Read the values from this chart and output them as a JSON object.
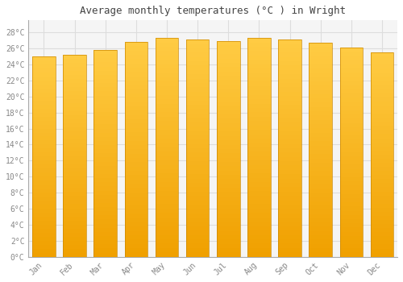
{
  "title": "Average monthly temperatures (°C ) in Wright",
  "months": [
    "Jan",
    "Feb",
    "Mar",
    "Apr",
    "May",
    "Jun",
    "Jul",
    "Aug",
    "Sep",
    "Oct",
    "Nov",
    "Dec"
  ],
  "values": [
    25.0,
    25.2,
    25.8,
    26.8,
    27.3,
    27.1,
    26.9,
    27.3,
    27.1,
    26.7,
    26.1,
    25.5
  ],
  "bar_color_top": "#FFCC33",
  "bar_color_bottom": "#F0A000",
  "bar_edge_color": "#CC8800",
  "background_color": "#FFFFFF",
  "plot_bg_color": "#F5F5F5",
  "grid_color": "#DDDDDD",
  "ytick_labels": [
    "0°C",
    "2°C",
    "4°C",
    "6°C",
    "8°C",
    "10°C",
    "12°C",
    "14°C",
    "16°C",
    "18°C",
    "20°C",
    "22°C",
    "24°C",
    "26°C",
    "28°C"
  ],
  "ytick_values": [
    0,
    2,
    4,
    6,
    8,
    10,
    12,
    14,
    16,
    18,
    20,
    22,
    24,
    26,
    28
  ],
  "ylim": [
    0,
    29.5
  ],
  "title_fontsize": 9,
  "tick_fontsize": 7,
  "bar_width": 0.75,
  "font_family": "monospace",
  "tick_color": "#888888",
  "spine_color": "#AAAAAA"
}
